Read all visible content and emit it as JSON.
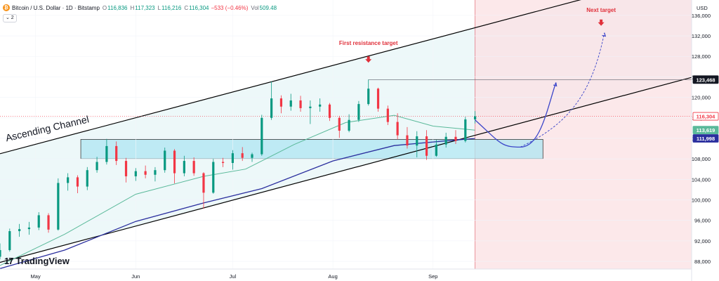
{
  "header": {
    "symbol": "Bitcoin / U.S. Dollar · 1D · Bitstamp",
    "o_label": "O",
    "o_value": "116,836",
    "h_label": "H",
    "h_value": "117,323",
    "l_label": "L",
    "l_value": "116,216",
    "c_label": "C",
    "c_value": "116,304",
    "change": "−533 (−0.46%)",
    "vol_label": "Vol",
    "vol_value": "509.48",
    "coin_glyph": "₿"
  },
  "indicator_toggle": "⌄ 2",
  "branding": {
    "logo_text": "TradingView",
    "logo_glyph": "17"
  },
  "colors": {
    "up": "#089981",
    "down": "#f23645",
    "ma_fast": "#5ab99a",
    "ma_slow": "#2a2e9e",
    "channel": "#000000",
    "forecast": "#3b45c9",
    "box_fill": "#aee6f2",
    "box_stroke": "#3a3a3a",
    "future_zone": "#fbe0e3",
    "annotation": "#e0303a"
  },
  "chart_data": {
    "type": "candlestick",
    "title": "Bitcoin / U.S. Dollar · 1D · Bitstamp",
    "currency_label": "USD",
    "y_ticks": [
      "136,000",
      "132,000",
      "128,000",
      "124,000",
      "120,000",
      "116,000",
      "112,000",
      "108,000",
      "104,000",
      "100,000",
      "96,000",
      "92,000",
      "88,000"
    ],
    "y_tick_values": [
      136000,
      132000,
      128000,
      124000,
      120000,
      116000,
      112000,
      108000,
      104000,
      100000,
      96000,
      92000,
      88000
    ],
    "ylim": [
      86500,
      139000
    ],
    "x_tick_labels": [
      {
        "label": "May",
        "date": "2025-05-01"
      },
      {
        "label": "Jun",
        "date": "2025-06-01"
      },
      {
        "label": "Jul",
        "date": "2025-07-01"
      },
      {
        "label": "Aug",
        "date": "2025-08-01"
      },
      {
        "label": "Sep",
        "date": "2025-09-01"
      }
    ],
    "xlim": [
      "2025-04-20",
      "2025-11-20"
    ],
    "price_badges": [
      {
        "label": "123,468",
        "value": 123468,
        "color": "#131722"
      },
      {
        "label": "116,304",
        "value": 116304,
        "color": "#f23645"
      },
      {
        "label": "113,619",
        "value": 113619,
        "color": "#5ab99a"
      },
      {
        "label": "111,998",
        "value": 111998,
        "color": "#2a2e9e"
      }
    ],
    "candles": [
      [
        "2025-04-20",
        88900,
        91500,
        88400,
        90200
      ],
      [
        "2025-04-23",
        90200,
        94400,
        89900,
        93900
      ],
      [
        "2025-04-26",
        93900,
        95300,
        92800,
        94300
      ],
      [
        "2025-04-29",
        94300,
        95700,
        93200,
        94600
      ],
      [
        "2025-05-02",
        94600,
        97600,
        94100,
        97000
      ],
      [
        "2025-05-05",
        97000,
        97400,
        93600,
        94200
      ],
      [
        "2025-05-08",
        94200,
        104200,
        94000,
        103300
      ],
      [
        "2025-05-11",
        103300,
        105200,
        101800,
        104400
      ],
      [
        "2025-05-14",
        104400,
        104800,
        101300,
        102600
      ],
      [
        "2025-05-17",
        102600,
        106400,
        101900,
        105800
      ],
      [
        "2025-05-20",
        105800,
        108400,
        105300,
        107400
      ],
      [
        "2025-05-23",
        107400,
        111900,
        106900,
        110500
      ],
      [
        "2025-05-26",
        110500,
        111400,
        106800,
        107600
      ],
      [
        "2025-05-29",
        107600,
        108200,
        103400,
        104600
      ],
      [
        "2025-06-01",
        104600,
        106200,
        103700,
        105600
      ],
      [
        "2025-06-04",
        105600,
        106700,
        104200,
        104900
      ],
      [
        "2025-06-07",
        104900,
        106400,
        103600,
        105800
      ],
      [
        "2025-06-10",
        105800,
        110200,
        105300,
        109600
      ],
      [
        "2025-06-13",
        109600,
        109900,
        103200,
        105200
      ],
      [
        "2025-06-16",
        105200,
        108600,
        104600,
        107600
      ],
      [
        "2025-06-19",
        107600,
        108300,
        104700,
        105200
      ],
      [
        "2025-06-22",
        105200,
        105400,
        98300,
        101400
      ],
      [
        "2025-06-25",
        101400,
        108000,
        101200,
        107400
      ],
      [
        "2025-06-28",
        107400,
        108200,
        106400,
        107200
      ],
      [
        "2025-07-01",
        107200,
        109700,
        105900,
        109100
      ],
      [
        "2025-07-04",
        109100,
        110300,
        107600,
        108200
      ],
      [
        "2025-07-07",
        108200,
        109200,
        107400,
        108900
      ],
      [
        "2025-07-10",
        108900,
        116600,
        108600,
        116000
      ],
      [
        "2025-07-13",
        116000,
        123100,
        115600,
        119800
      ],
      [
        "2025-07-16",
        119800,
        120400,
        116900,
        118200
      ],
      [
        "2025-07-19",
        118200,
        120700,
        117400,
        119400
      ],
      [
        "2025-07-22",
        119400,
        120300,
        117200,
        117900
      ],
      [
        "2025-07-25",
        117900,
        119400,
        114800,
        118200
      ],
      [
        "2025-07-28",
        118200,
        119800,
        117200,
        118600
      ],
      [
        "2025-07-31",
        118600,
        118900,
        115400,
        116000
      ],
      [
        "2025-08-03",
        116000,
        116400,
        112100,
        113500
      ],
      [
        "2025-08-06",
        113500,
        116700,
        113200,
        115600
      ],
      [
        "2025-08-09",
        115600,
        119300,
        115200,
        118700
      ],
      [
        "2025-08-12",
        118700,
        123468,
        118400,
        121700
      ],
      [
        "2025-08-15",
        121700,
        121900,
        117200,
        117800
      ],
      [
        "2025-08-18",
        117800,
        118400,
        114600,
        115200
      ],
      [
        "2025-08-21",
        115200,
        116900,
        111800,
        112600
      ],
      [
        "2025-08-24",
        112600,
        114200,
        110000,
        110600
      ],
      [
        "2025-08-27",
        110600,
        113400,
        108300,
        112400
      ],
      [
        "2025-08-30",
        112400,
        113600,
        107800,
        108600
      ],
      [
        "2025-09-02",
        108600,
        111700,
        108400,
        110800
      ],
      [
        "2025-09-05",
        110800,
        113100,
        110200,
        112300
      ],
      [
        "2025-09-08",
        112300,
        113600,
        110900,
        111500
      ],
      [
        "2025-09-11",
        111500,
        116200,
        111200,
        115700
      ],
      [
        "2025-09-14",
        115700,
        117323,
        114900,
        116304
      ]
    ],
    "series": [
      {
        "name": "MA fast",
        "points": [
          [
            "2025-04-20",
            87200
          ],
          [
            "2025-05-10",
            93300
          ],
          [
            "2025-06-01",
            101100
          ],
          [
            "2025-06-22",
            104600
          ],
          [
            "2025-07-05",
            106000
          ],
          [
            "2025-07-20",
            110800
          ],
          [
            "2025-08-05",
            115100
          ],
          [
            "2025-08-20",
            116500
          ],
          [
            "2025-09-01",
            114400
          ],
          [
            "2025-09-14",
            113600
          ]
        ]
      },
      {
        "name": "MA slow",
        "points": [
          [
            "2025-04-20",
            86600
          ],
          [
            "2025-05-10",
            90200
          ],
          [
            "2025-06-01",
            95800
          ],
          [
            "2025-06-22",
            99400
          ],
          [
            "2025-07-10",
            102200
          ],
          [
            "2025-08-01",
            107600
          ],
          [
            "2025-08-20",
            110600
          ],
          [
            "2025-09-01",
            111300
          ],
          [
            "2025-09-14",
            112000
          ]
        ]
      }
    ],
    "trendlines": [
      {
        "name": "Channel top",
        "points": [
          [
            "2025-04-20",
            109000
          ],
          [
            "2025-11-20",
            144800
          ]
        ]
      },
      {
        "name": "Channel bottom",
        "points": [
          [
            "2025-04-20",
            87800
          ],
          [
            "2025-11-20",
            123900
          ]
        ]
      },
      {
        "name": "Resistance",
        "points": [
          [
            "2025-08-12",
            123468
          ],
          [
            "2025-11-20",
            123468
          ]
        ]
      }
    ],
    "zones": [
      {
        "name": "Support box",
        "x": [
          "2025-05-15",
          "2025-10-05"
        ],
        "y": [
          108000,
          111800
        ]
      },
      {
        "name": "Future zone",
        "x": [
          "2025-09-14",
          "2025-11-20"
        ],
        "y": [
          86500,
          139000
        ]
      }
    ],
    "forecast_paths": [
      {
        "style": "solid",
        "points": [
          [
            "2025-09-14",
            115600
          ],
          [
            "2025-09-22",
            111000
          ],
          [
            "2025-09-28",
            110300
          ],
          [
            "2025-10-06",
            117000
          ],
          [
            "2025-10-09",
            122900
          ]
        ]
      },
      {
        "style": "dashed",
        "points": [
          [
            "2025-09-28",
            110300
          ],
          [
            "2025-10-12",
            114500
          ],
          [
            "2025-10-20",
            120000
          ],
          [
            "2025-10-24",
            132600
          ]
        ]
      }
    ],
    "annotations": [
      {
        "text": "First resistance target",
        "date": "2025-08-12",
        "price": 130200,
        "arrow_date": "2025-08-12",
        "arrow_price": 128000
      },
      {
        "text": "Next target",
        "date": "2025-10-23",
        "price": 136700,
        "arrow_date": "2025-10-23",
        "arrow_price": 135200
      },
      {
        "text": "Ascending Channel",
        "date": "2025-04-22",
        "price": 111400,
        "rotate_deg": -13
      }
    ]
  }
}
